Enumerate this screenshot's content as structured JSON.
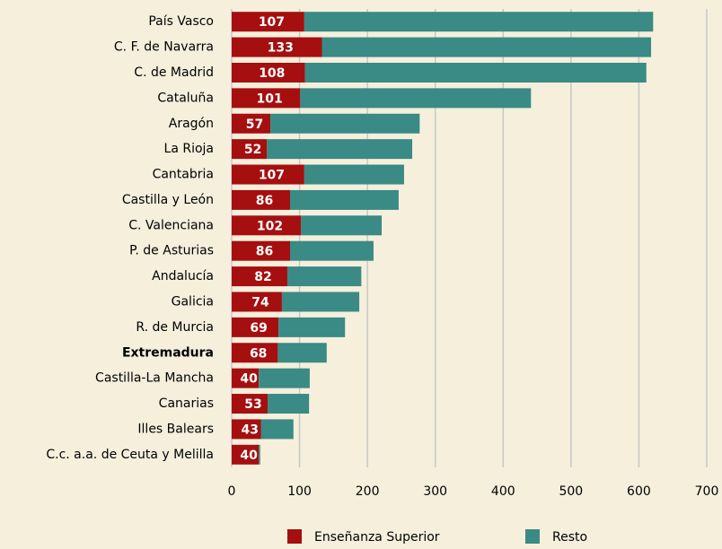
{
  "chart_data": {
    "type": "stacked-barh",
    "categories": [
      "País Vasco",
      "C. F. de Navarra",
      "C. de Madrid",
      "Cataluña",
      "Aragón",
      "La Rioja",
      "Cantabria",
      "Castilla y León",
      "C. Valenciana",
      "P. de Asturias",
      "Andalucía",
      "Galicia",
      "R. de Murcia",
      "Extremadura",
      "Castilla-La Mancha",
      "Canarias",
      "Illes Balears",
      "C.c. a.a. de Ceuta y Melilla"
    ],
    "series": [
      {
        "name": "Enseñanza Superior",
        "color": "#a50f0f",
        "values": [
          107,
          133,
          108,
          101,
          57,
          52,
          107,
          86,
          102,
          86,
          82,
          74,
          69,
          68,
          40,
          53,
          43,
          40
        ]
      },
      {
        "name": "Resto",
        "color": "#3a8a85",
        "values": [
          514,
          485,
          503,
          340,
          220,
          214,
          147,
          160,
          119,
          123,
          109,
          114,
          98,
          72,
          75,
          61,
          48,
          2
        ]
      }
    ],
    "xlim": [
      0,
      700
    ],
    "xticks": [
      0,
      100,
      200,
      300,
      400,
      500,
      600,
      700
    ],
    "grid": true,
    "highlight_index": 13,
    "legend": "bottom"
  }
}
